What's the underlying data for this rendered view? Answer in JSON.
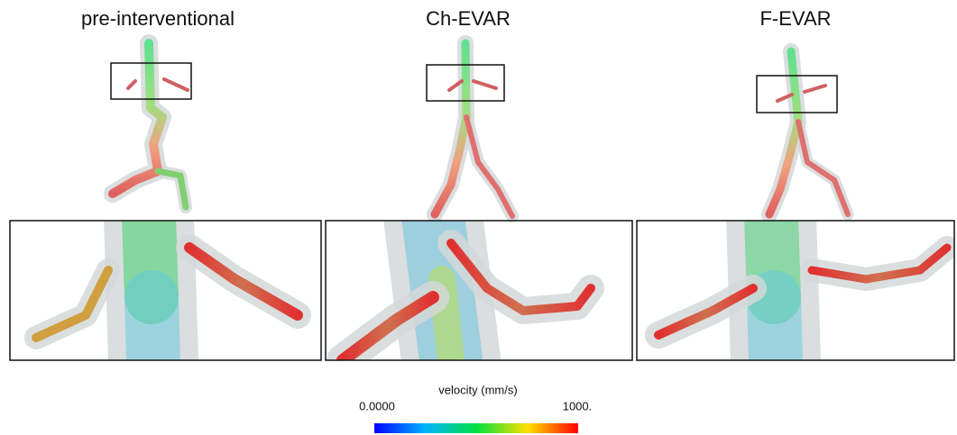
{
  "panels": [
    {
      "title": "pre-interventional"
    },
    {
      "title": "Ch-EVAR"
    },
    {
      "title": "F-EVAR"
    }
  ],
  "colorbar": {
    "label": "velocity (mm/s)",
    "min_label": "0.0000",
    "max_label": "1000."
  }
}
